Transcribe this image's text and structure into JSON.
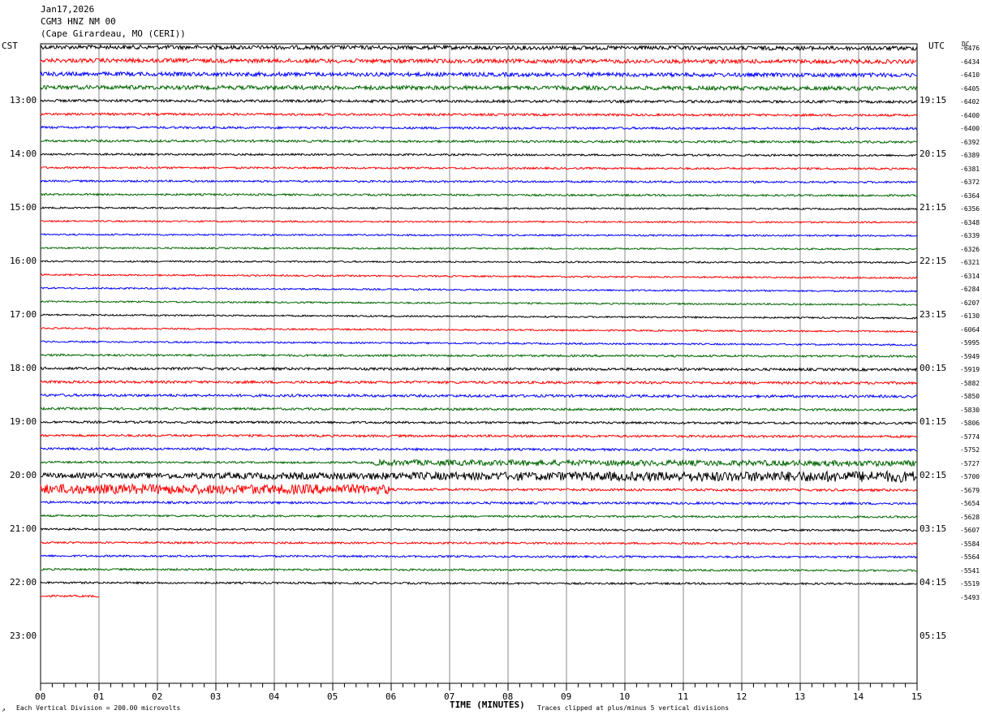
{
  "header": {
    "date": "Jan17,2026",
    "station": "CGM3 HNZ NM 00",
    "location": "(Cape Girardeau, MO (CERI))"
  },
  "left_tz": "CST",
  "right_tz": "UTC",
  "dc_label": "DC",
  "footer": {
    "scale_note": "Each Vertical Division =  200.00 microvolts",
    "clip_note": "Traces clipped at plus/minus 5 vertical divisions"
  },
  "chart_data": {
    "type": "line",
    "xlabel": "TIME (MINUTES)",
    "x_ticks": [
      "00",
      "01",
      "02",
      "03",
      "04",
      "05",
      "06",
      "07",
      "08",
      "09",
      "10",
      "11",
      "12",
      "13",
      "14",
      "15"
    ],
    "xlim": [
      0,
      15
    ],
    "left_hour_labels": [
      "13:00",
      "14:00",
      "15:00",
      "16:00",
      "17:00",
      "18:00",
      "19:00",
      "20:00",
      "21:00",
      "22:00",
      "23:00"
    ],
    "right_hour_labels": [
      "19:15",
      "20:15",
      "21:15",
      "22:15",
      "23:15",
      "00:15",
      "01:15",
      "02:15",
      "03:15",
      "04:15",
      "05:15"
    ],
    "trace_colors": [
      "#000000",
      "#ff0000",
      "#0000ff",
      "#006600"
    ],
    "dc_offsets": [
      -6476,
      -6434,
      -6410,
      -6405,
      -6402,
      -6400,
      -6400,
      -6392,
      -6389,
      -6381,
      -6372,
      -6364,
      -6356,
      -6348,
      -6339,
      -6326,
      -6321,
      -6314,
      -6284,
      -6207,
      -6130,
      -6064,
      -5995,
      -5949,
      -5919,
      -5882,
      -5850,
      -5830,
      -5806,
      -5774,
      -5752,
      -5727,
      -5700,
      -5679,
      -5654,
      -5628,
      -5607,
      -5584,
      -5564,
      -5541,
      -5519,
      -5493
    ],
    "trace_amplitude": [
      2.5,
      2.5,
      2.5,
      2.5,
      1.6,
      1.4,
      1.4,
      1.4,
      1.2,
      1.2,
      1.2,
      1.2,
      1.0,
      1.0,
      1.0,
      1.0,
      1.0,
      1.0,
      1.0,
      1.0,
      1.0,
      1.0,
      1.0,
      1.3,
      1.6,
      1.6,
      1.6,
      1.4,
      1.4,
      1.4,
      1.4,
      2.5,
      6.0,
      5.5,
      1.4,
      1.2,
      1.2,
      1.2,
      1.2,
      1.2,
      1.2,
      1.2
    ],
    "last_trace_end_minute": 1.0,
    "grid": true,
    "legend": "none"
  }
}
